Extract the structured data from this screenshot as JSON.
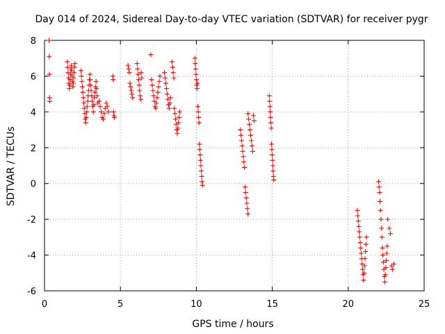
{
  "chart_data": {
    "type": "scatter",
    "title": "Day 014 of 2024, Sidereal Day-to-day VTEC variation (SDTVAR) for receiver pygr",
    "xlabel": "GPS time / hours",
    "ylabel": "SDTVAR / TECUs",
    "xlim": [
      0,
      25
    ],
    "ylim": [
      -6,
      8
    ],
    "x_ticks": [
      0,
      5,
      10,
      15,
      20,
      25
    ],
    "y_ticks": [
      -6,
      -4,
      -2,
      0,
      2,
      4,
      6,
      8
    ],
    "grid": true,
    "legend": "none",
    "marker": "plus",
    "color": "#ff0000",
    "series": [
      {
        "name": "SDTVAR",
        "clusters": [
          {
            "x_start": 0.3,
            "x_end": 0.35,
            "values": [
              8.0,
              7.1,
              6.1,
              4.8,
              4.6
            ]
          },
          {
            "x_start": 1.5,
            "x_end": 2.0,
            "values": [
              6.8,
              6.5,
              6.2,
              5.9,
              5.6,
              5.3,
              5.5,
              5.8,
              6.1,
              6.4,
              6.6,
              6.3,
              6.0,
              5.7,
              5.4,
              5.6,
              5.9,
              6.2,
              6.5,
              6.7
            ]
          },
          {
            "x_start": 2.4,
            "x_end": 3.0,
            "values": [
              6.3,
              6.0,
              5.7,
              5.4,
              5.1,
              4.8,
              4.5,
              4.2,
              3.9,
              3.6,
              3.4,
              3.7,
              4.0,
              4.3,
              4.6,
              4.9,
              5.2,
              5.5,
              5.8,
              6.1
            ]
          },
          {
            "x_start": 3.0,
            "x_end": 3.5,
            "values": [
              5.8,
              5.5,
              5.2,
              4.9,
              4.6,
              4.3,
              4.0,
              4.4,
              4.8,
              5.1,
              5.4,
              5.7,
              5.3,
              4.9,
              4.5
            ]
          },
          {
            "x_start": 3.6,
            "x_end": 4.2,
            "values": [
              4.6,
              4.3,
              4.0,
              3.7,
              3.6,
              3.9,
              4.2,
              4.5,
              4.3,
              4.0
            ]
          },
          {
            "x_start": 4.5,
            "x_end": 4.6,
            "values": [
              6.0,
              5.8,
              4.0,
              3.8,
              3.7
            ]
          },
          {
            "x_start": 5.5,
            "x_end": 5.8,
            "values": [
              6.6,
              6.4,
              6.2,
              5.6,
              5.4,
              5.2,
              5.0,
              4.8
            ]
          },
          {
            "x_start": 6.1,
            "x_end": 6.4,
            "values": [
              6.7,
              6.4,
              6.1,
              5.8,
              5.5,
              5.2,
              4.9,
              4.7,
              6.2,
              5.9
            ]
          },
          {
            "x_start": 7.0,
            "x_end": 7.6,
            "values": [
              7.2,
              5.8,
              5.5,
              5.2,
              4.9,
              4.6,
              4.3,
              4.2,
              4.5,
              4.8,
              5.1,
              5.4,
              5.7,
              6.0
            ]
          },
          {
            "x_start": 7.9,
            "x_end": 8.3,
            "values": [
              6.2,
              5.9,
              5.6,
              5.3,
              5.0,
              4.7,
              4.4,
              4.2,
              4.5,
              4.8
            ]
          },
          {
            "x_start": 8.4,
            "x_end": 8.9,
            "values": [
              6.8,
              6.5,
              6.2,
              5.9,
              4.2,
              3.9,
              3.6,
              3.3,
              3.0,
              2.8,
              3.1,
              3.4,
              3.7,
              4.0
            ]
          },
          {
            "x_start": 9.9,
            "x_end": 10.4,
            "values": [
              7.0,
              6.7,
              6.4,
              6.1,
              5.8,
              5.5,
              5.3,
              5.6,
              4.3,
              4.0,
              3.7,
              3.4,
              2.2,
              1.9,
              1.6,
              1.3,
              1.0,
              0.7,
              0.4,
              0.1,
              -0.1
            ]
          },
          {
            "x_start": 12.9,
            "x_end": 13.4,
            "values": [
              3.0,
              2.7,
              2.4,
              2.1,
              1.8,
              1.5,
              1.2,
              0.9,
              -0.2,
              -0.5,
              -0.8,
              -1.1,
              -1.4,
              -1.7
            ]
          },
          {
            "x_start": 13.4,
            "x_end": 13.8,
            "values": [
              3.9,
              3.6,
              3.3,
              3.0,
              2.7,
              2.4,
              2.1,
              1.8,
              3.8,
              3.5
            ]
          },
          {
            "x_start": 14.8,
            "x_end": 15.1,
            "values": [
              4.9,
              4.6,
              4.3,
              4.0,
              3.7,
              3.4,
              3.1,
              2.2,
              1.9,
              1.6,
              1.3,
              1.0,
              0.7,
              0.4,
              0.2
            ]
          },
          {
            "x_start": 20.6,
            "x_end": 21.2,
            "values": [
              -1.5,
              -1.8,
              -2.1,
              -2.4,
              -2.7,
              -3.0,
              -3.3,
              -3.6,
              -3.9,
              -4.2,
              -4.5,
              -4.8,
              -5.1,
              -5.4,
              -5.0,
              -4.6,
              -4.2,
              -3.8,
              -3.4,
              -3.0
            ]
          },
          {
            "x_start": 22.0,
            "x_end": 22.6,
            "values": [
              0.1,
              -0.2,
              -0.5,
              -1.0,
              -1.5,
              -2.0,
              -2.5,
              -3.0,
              -3.6,
              -4.0,
              -4.4,
              -4.8,
              -5.2,
              -5.5,
              -5.1,
              -4.7,
              -4.3,
              -3.9,
              -3.5,
              -2.0
            ]
          },
          {
            "x_start": 22.7,
            "x_end": 23.0,
            "values": [
              -2.5,
              -2.8,
              -4.6,
              -4.8,
              -4.5
            ]
          }
        ]
      }
    ]
  }
}
